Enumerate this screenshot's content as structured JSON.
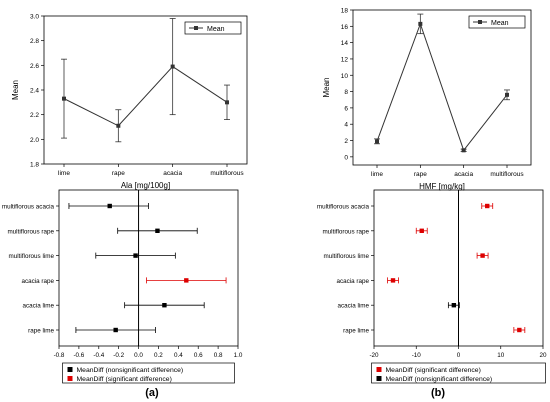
{
  "chart_data": [
    {
      "type": "line",
      "xlabel": "Ala [mg/100g]",
      "ylabel": "Mean",
      "categories": [
        "lime",
        "rape",
        "acacia",
        "multiflorous"
      ],
      "ylim": [
        1.8,
        3.0
      ],
      "yticks": [
        "1.8",
        "2.0",
        "2.2",
        "2.4",
        "2.6",
        "2.8",
        "3.0"
      ],
      "series": [
        {
          "name": "Mean",
          "values": [
            2.33,
            2.11,
            2.59,
            2.3
          ],
          "err": [
            0.32,
            0.13,
            0.39,
            0.14
          ],
          "color": "#333333"
        }
      ],
      "legend_position": "top-right"
    },
    {
      "type": "line",
      "xlabel": "HMF [mg/kg]",
      "ylabel": "Mean",
      "categories": [
        "lime",
        "rape",
        "acacia",
        "multiflorous"
      ],
      "ylim": [
        -1,
        18
      ],
      "yticks": [
        "0",
        "2",
        "4",
        "6",
        "8",
        "10",
        "12",
        "14",
        "16",
        "18"
      ],
      "series": [
        {
          "name": "Mean",
          "values": [
            1.9,
            16.3,
            0.8,
            7.6
          ],
          "err": [
            0.3,
            1.2,
            0.15,
            0.6
          ],
          "color": "#333333"
        }
      ],
      "legend_position": "top-right"
    },
    {
      "type": "scatter",
      "categories": [
        "multiflorous  acacia",
        "multiflorous  rape",
        "multiflorous  lime",
        "acacia  rape",
        "acacia  lime",
        "rape  lime"
      ],
      "xlim": [
        -0.8,
        1.0
      ],
      "xticks": [
        "-0.8",
        "-0.6",
        "-0.4",
        "-0.2",
        "0.0",
        "0.2",
        "0.4",
        "0.6",
        "0.8",
        "1.0"
      ],
      "series": [
        {
          "name": "MeanDiff (nonsignificant difference)",
          "color": "#000000",
          "points": [
            {
              "category": "multiflorous  acacia",
              "value": -0.29,
              "low": -0.7,
              "high": 0.1
            },
            {
              "category": "multiflorous  rape",
              "value": 0.19,
              "low": -0.21,
              "high": 0.59
            },
            {
              "category": "multiflorous  lime",
              "value": -0.03,
              "low": -0.43,
              "high": 0.37
            },
            {
              "category": "acacia  lime",
              "value": 0.26,
              "low": -0.14,
              "high": 0.66
            },
            {
              "category": "rape  lime",
              "value": -0.23,
              "low": -0.63,
              "high": 0.17
            }
          ]
        },
        {
          "name": "MeanDiff (significant difference)",
          "color": "#dd0000",
          "points": [
            {
              "category": "acacia  rape",
              "value": 0.48,
              "low": 0.08,
              "high": 0.88
            }
          ]
        }
      ],
      "legend_position": "bottom"
    },
    {
      "type": "scatter",
      "categories": [
        "multiflorous  acacia",
        "multiflorous  rape",
        "multiflorous  lime",
        "acacia  rape",
        "acacia  lime",
        "rape  lime"
      ],
      "xlim": [
        -20,
        20
      ],
      "xticks": [
        "-20",
        "-10",
        "0",
        "10",
        "20"
      ],
      "series": [
        {
          "name": "MeanDiff (significant difference)",
          "color": "#dd0000",
          "points": [
            {
              "category": "multiflorous  acacia",
              "value": 6.8,
              "low": 5.5,
              "high": 8.1
            },
            {
              "category": "multiflorous  rape",
              "value": -8.7,
              "low": -10.0,
              "high": -7.4
            },
            {
              "category": "multiflorous  lime",
              "value": 5.7,
              "low": 4.4,
              "high": 7.0
            },
            {
              "category": "acacia  rape",
              "value": -15.5,
              "low": -16.8,
              "high": -14.2
            },
            {
              "category": "rape  lime",
              "value": 14.4,
              "low": 13.1,
              "high": 15.7
            }
          ]
        },
        {
          "name": "MeanDiff (nonsignificant difference)",
          "color": "#000000",
          "points": [
            {
              "category": "acacia  lime",
              "value": -1.1,
              "low": -2.4,
              "high": 0.2
            }
          ]
        }
      ],
      "legend_position": "bottom"
    }
  ],
  "panel_labels": [
    "(a)",
    "(b)"
  ]
}
